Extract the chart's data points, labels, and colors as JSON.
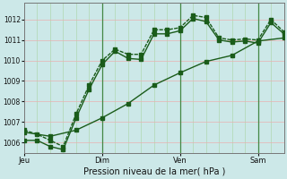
{
  "xlabel": "Pression niveau de la mer( hPa )",
  "ylim": [
    1005.5,
    1012.8
  ],
  "yticks": [
    1006,
    1007,
    1008,
    1009,
    1010,
    1011,
    1012
  ],
  "xtick_labels": [
    "Jeu",
    "Dim",
    "Ven",
    "Sam"
  ],
  "xtick_positions": [
    0,
    36,
    72,
    108
  ],
  "xlim": [
    0,
    120
  ],
  "bg_color": "#cce8e8",
  "grid_color_h": "#e8b0b0",
  "grid_color_v": "#b0d8b0",
  "line_color": "#1a5c1a",
  "marker": "s",
  "markersize": 2.5,
  "linewidth": 1.0,
  "vline_color": "#448844",
  "vline_positions": [
    36,
    72,
    108
  ],
  "line1_x": [
    0,
    6,
    12,
    18,
    24,
    30,
    36,
    42,
    48,
    54,
    60,
    66,
    72,
    78,
    84,
    90,
    96,
    102,
    108,
    114,
    120
  ],
  "line1_y": [
    1006.6,
    1006.4,
    1006.1,
    1005.8,
    1007.4,
    1008.8,
    1010.0,
    1010.55,
    1010.3,
    1010.3,
    1011.5,
    1011.5,
    1011.6,
    1012.2,
    1012.1,
    1011.1,
    1011.0,
    1011.05,
    1011.0,
    1012.0,
    1011.4
  ],
  "line2_x": [
    0,
    6,
    12,
    18,
    24,
    30,
    36,
    42,
    48,
    54,
    60,
    66,
    72,
    78,
    84,
    90,
    96,
    102,
    108,
    114,
    120
  ],
  "line2_y": [
    1006.1,
    1006.1,
    1005.8,
    1005.65,
    1007.2,
    1008.6,
    1009.8,
    1010.45,
    1010.1,
    1010.05,
    1011.3,
    1011.3,
    1011.45,
    1012.05,
    1011.9,
    1011.0,
    1010.9,
    1010.95,
    1010.85,
    1011.85,
    1011.3
  ],
  "line3_x": [
    0,
    12,
    24,
    36,
    48,
    60,
    72,
    84,
    96,
    108,
    120
  ],
  "line3_y": [
    1006.5,
    1006.3,
    1006.6,
    1007.2,
    1007.9,
    1008.8,
    1009.4,
    1009.95,
    1010.25,
    1010.95,
    1011.1
  ]
}
